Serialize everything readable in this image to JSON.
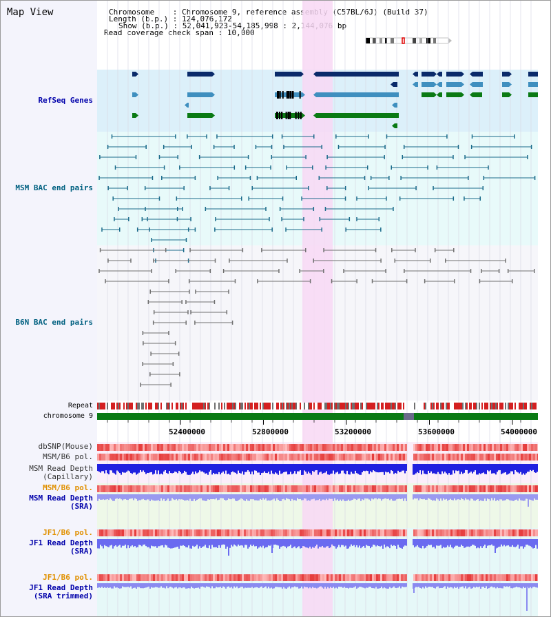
{
  "title": "Map View",
  "info": {
    "chromosome_label": "Chromosome",
    "chromosome_value": "Chromosome 9, reference assembly (C57BL/6J) (Build 37)",
    "length_label": "Length (b.p.)",
    "length_value": "124,076,172",
    "show_label": "Show (b.p.)",
    "show_value": "52,041,923-54,185,998 : 2,144,076 bp",
    "coverage_label": "Read coverage check span",
    "coverage_value": "10,000"
  },
  "tracks": {
    "refseq": "RefSeq Genes",
    "msm_bac": "MSM BAC end pairs",
    "b6n_bac": "B6N BAC end pairs",
    "repeat": "Repeat",
    "chromosome": "chromosome 9",
    "dbsnp": "dbSNP(Mouse)",
    "msm_b6_pol_1": "MSM/B6 pol.",
    "msm_depth_cap": "MSM Read Depth\n(Capillary)",
    "msm_b6_pol_2": "MSM/B6 pol.",
    "msm_depth_sra": "MSM Read Depth\n(SRA)",
    "jf1_pol_1": "JF1/B6 pol.",
    "jf1_depth_sra": "JF1 Read Depth\n(SRA)",
    "jf1_pol_2": "JF1/B6 pol.",
    "jf1_depth_trim": "JF1 Read Depth\n(SRA trimmed)"
  },
  "axis": {
    "ticks": [
      "52400000",
      "52800000",
      "53200000",
      "53600000",
      "54000000"
    ]
  },
  "colors": {
    "refseq_bg": "#dcf0fa",
    "msm_bg": "#e8fafa",
    "highlight": "#f8d8f4",
    "gene_dark": "#0a2a6a",
    "gene_mid": "#3f8fbf",
    "gene_green": "#0a7a14",
    "msm_pair": "#1a6a8a",
    "b6n_pair": "#707070",
    "label_blue": "#0000aa",
    "label_teal": "#006080",
    "label_orange": "#e09000"
  }
}
